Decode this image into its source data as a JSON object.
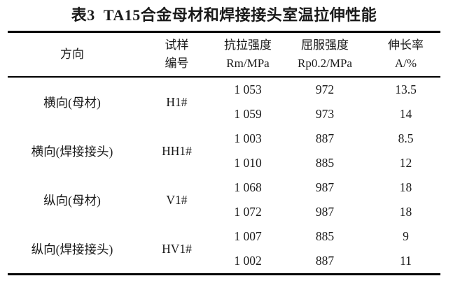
{
  "title": "表3  TA15合金母材和焊接接头室温拉伸性能",
  "table": {
    "columns": [
      {
        "line1": "方向",
        "line2": ""
      },
      {
        "line1": "试样",
        "line2": "编号"
      },
      {
        "line1": "抗拉强度",
        "line2": "Rm/MPa"
      },
      {
        "line1": "屈服强度",
        "line2": "Rp0.2/MPa"
      },
      {
        "line1": "伸长率",
        "line2": "A/%"
      }
    ],
    "groups": [
      {
        "direction": "横向(母材)",
        "specimen": "H1#",
        "rows": [
          [
            "1 053",
            "972",
            "13.5"
          ],
          [
            "1 059",
            "973",
            "14"
          ]
        ]
      },
      {
        "direction": "横向(焊接接头)",
        "specimen": "HH1#",
        "rows": [
          [
            "1 003",
            "887",
            "8.5"
          ],
          [
            "1 010",
            "885",
            "12"
          ]
        ]
      },
      {
        "direction": "纵向(母材)",
        "specimen": "V1#",
        "rows": [
          [
            "1 068",
            "987",
            "18"
          ],
          [
            "1 072",
            "987",
            "18"
          ]
        ]
      },
      {
        "direction": "纵向(焊接接头)",
        "specimen": "HV1#",
        "rows": [
          [
            "1 007",
            "885",
            "9"
          ],
          [
            "1 002",
            "887",
            "11"
          ]
        ]
      }
    ]
  },
  "colors": {
    "background": "#ffffff",
    "text": "#1a1a1a",
    "rule": "#000000"
  }
}
